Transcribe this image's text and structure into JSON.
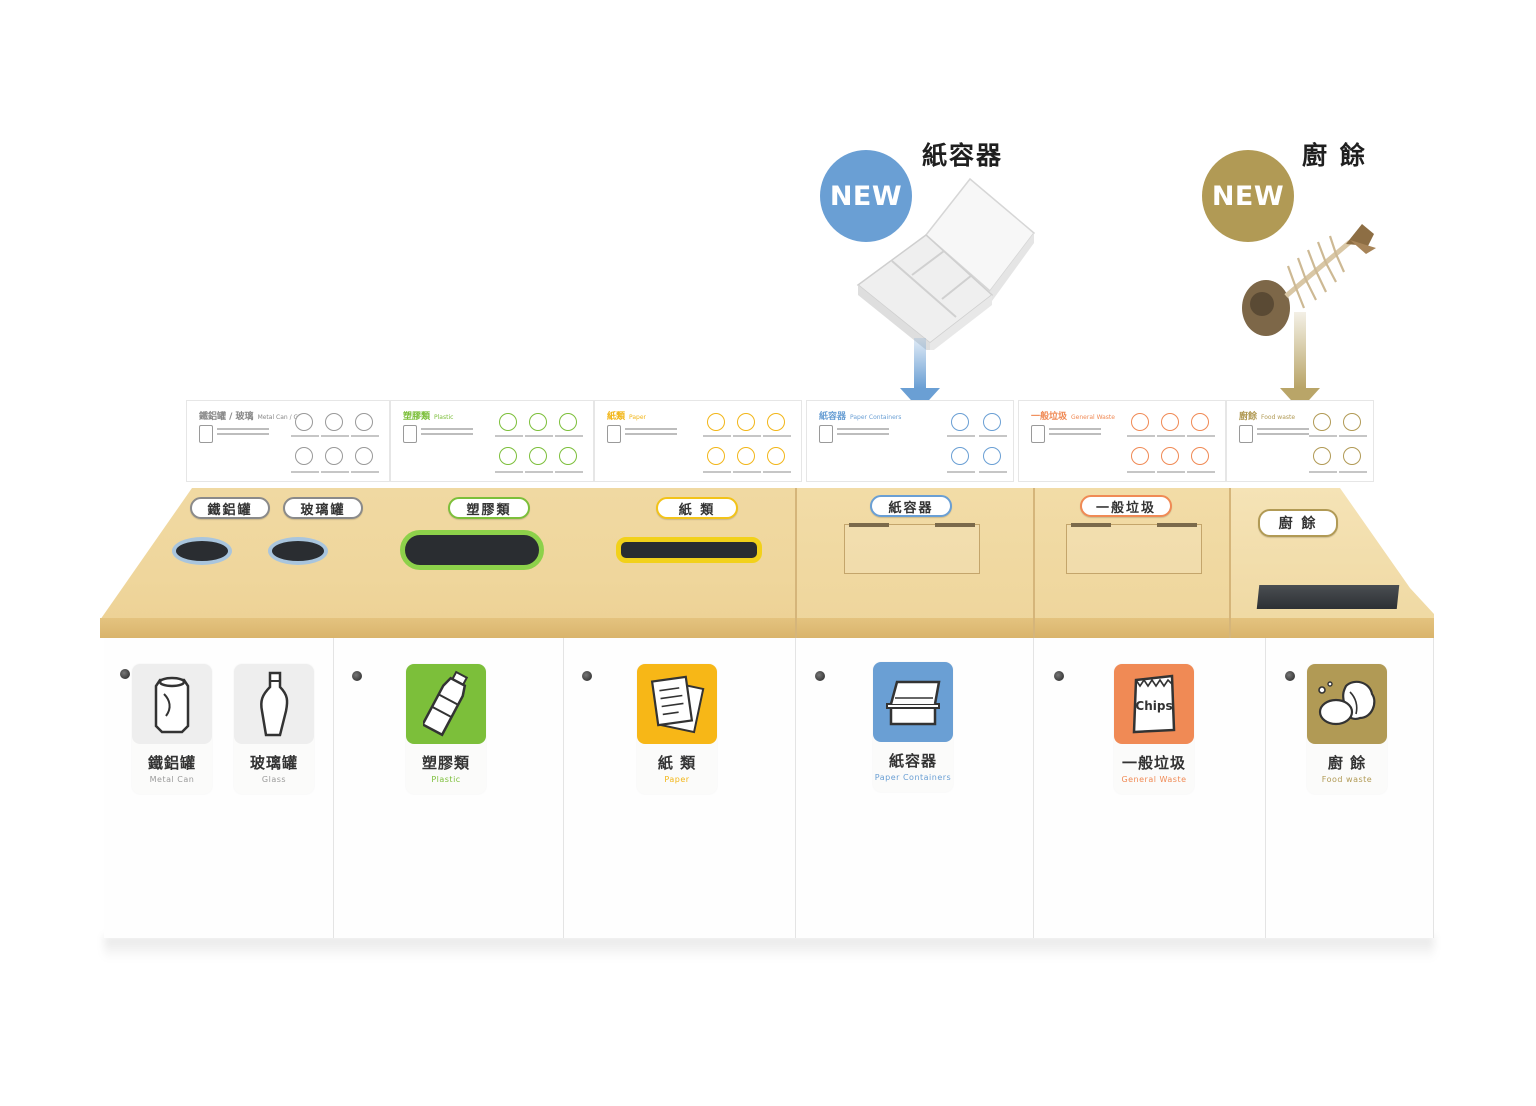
{
  "callouts": [
    {
      "badge": "NEW",
      "title": "紙容器",
      "color": "#6a9fd4"
    },
    {
      "badge": "NEW",
      "title": "廚 餘",
      "color": "#b19a55"
    }
  ],
  "signs": [
    {
      "zh": "鐵鋁罐 / 玻璃",
      "en": "Metal Can / Glass",
      "color": "#888888"
    },
    {
      "zh": "塑膠類",
      "en": "Plastic",
      "color": "#7cbf3a"
    },
    {
      "zh": "紙類",
      "en": "Paper",
      "color": "#f2b619"
    },
    {
      "zh": "紙容器",
      "en": "Paper Containers",
      "color": "#6a9fd4"
    },
    {
      "zh": "一般垃圾",
      "en": "General Waste",
      "color": "#f08a55"
    },
    {
      "zh": "廚餘",
      "en": "Food waste",
      "color": "#b19a55"
    }
  ],
  "lid_labels": [
    "鐵鋁罐",
    "玻璃罐",
    "塑膠類",
    "紙 類",
    "紙容器",
    "一般垃圾",
    "廚 餘"
  ],
  "bins": [
    {
      "zh": "鐵鋁罐",
      "en": "Metal Can",
      "icon": "can-icon",
      "color": "#eeeeee",
      "en_color": "#9a9a9a"
    },
    {
      "zh": "玻璃罐",
      "en": "Glass",
      "icon": "bottle-icon",
      "color": "#eeeeee",
      "en_color": "#9a9a9a"
    },
    {
      "zh": "塑膠類",
      "en": "Plastic",
      "icon": "plastic-bottle-icon",
      "color": "#7cbf3a",
      "en_color": "#7cbf3a"
    },
    {
      "zh": "紙 類",
      "en": "Paper",
      "icon": "paper-icon",
      "color": "#f7b717",
      "en_color": "#f2b619"
    },
    {
      "zh": "紙容器",
      "en": "Paper Containers",
      "icon": "paper-box-icon",
      "color": "#6a9fd4",
      "en_color": "#6a9fd4"
    },
    {
      "zh": "一般垃圾",
      "en": "General Waste",
      "icon": "chips-bag-icon",
      "color": "#f08a55",
      "en_color": "#f08a55",
      "icon_text": "Chips"
    },
    {
      "zh": "廚 餘",
      "en": "Food waste",
      "icon": "food-waste-icon",
      "color": "#b19a55",
      "en_color": "#b19a55"
    }
  ]
}
